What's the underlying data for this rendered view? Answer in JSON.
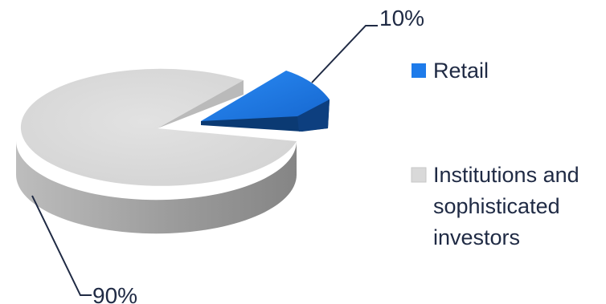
{
  "chart_data": {
    "type": "pie",
    "title": "",
    "series": [
      {
        "categories": [
          "Retail",
          "Institutions and sophisticated investors"
        ],
        "values": [
          10,
          90
        ],
        "data_labels": [
          "10%",
          "90%"
        ]
      }
    ],
    "legend": {
      "placement": "right",
      "entries": [
        {
          "label_lines": [
            "Retail"
          ],
          "color": "#1e7bea"
        },
        {
          "label_lines": [
            "Institutions and",
            "sophisticated",
            "investors"
          ],
          "color": "#d9d9d9"
        }
      ]
    },
    "style": {
      "three_d": true,
      "exploded_slice": "Retail",
      "slice_colors": [
        "#1e7bea",
        "#d9d9d9"
      ],
      "side_colors": [
        "#0b3a73",
        "#a8a8a8"
      ],
      "leader_line_color": "#1f2a44"
    }
  }
}
